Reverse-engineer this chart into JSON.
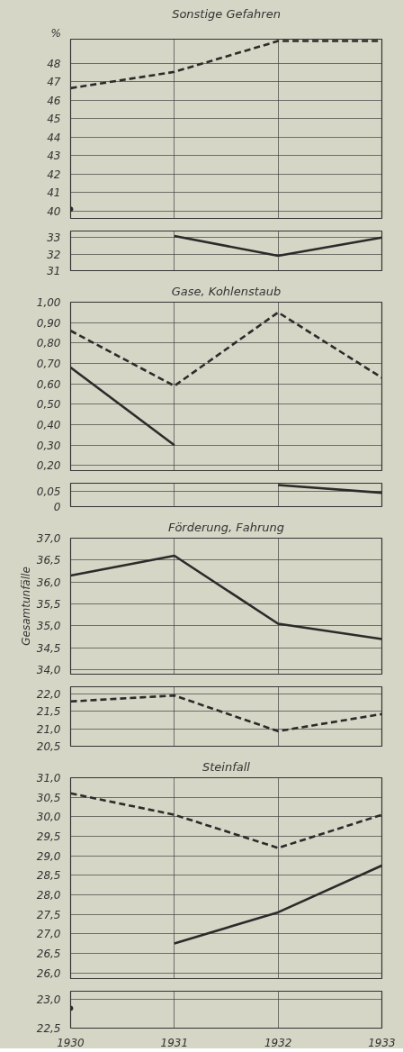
{
  "chart_data": [
    {
      "type": "line",
      "title": "Sonstige Gefahren",
      "annotations": [
        "%"
      ],
      "xlim": [
        1930,
        1933
      ],
      "xticks": [
        1930,
        1931,
        1932,
        1933
      ],
      "ylim": [
        39.6,
        49.3
      ],
      "yticks": [
        40,
        41,
        42,
        43,
        44,
        45,
        46,
        47,
        48
      ],
      "grid": true,
      "tick_labels": "y",
      "series": [
        {
          "color": "#2b2b2b",
          "line_style": "dashed",
          "x": [
            1930,
            1931,
            1932,
            1933
          ],
          "values": [
            46.65,
            47.53,
            49.2,
            49.2
          ]
        },
        {
          "color": "#2b2b2b",
          "line_style": "solid",
          "marker": "circle",
          "x": [
            1930
          ],
          "values": [
            40.1
          ]
        }
      ]
    },
    {
      "type": "line",
      "xlim": [
        1930,
        1933
      ],
      "xticks": [
        1930,
        1931,
        1932,
        1933
      ],
      "ylim": [
        31,
        33.4
      ],
      "yticks": [
        31,
        32,
        33
      ],
      "grid": true,
      "tick_labels": "y",
      "series": [
        {
          "color": "#2b2b2b",
          "line_style": "solid",
          "x": [
            1931,
            1932,
            1933
          ],
          "values": [
            33.1,
            31.9,
            33.0
          ]
        }
      ]
    },
    {
      "type": "line",
      "title": "Gase, Kohlenstaub",
      "xlim": [
        1930,
        1933
      ],
      "xticks": [
        1930,
        1931,
        1932,
        1933
      ],
      "ylim": [
        0.175,
        1.0
      ],
      "yticks": [
        {
          "value": 0.2,
          "label": "0,20"
        },
        {
          "value": 0.3,
          "label": "0,30"
        },
        {
          "value": 0.4,
          "label": "0,40"
        },
        {
          "value": 0.5,
          "label": "0,50"
        },
        {
          "value": 0.6,
          "label": "0,60"
        },
        {
          "value": 0.7,
          "label": "0,70"
        },
        {
          "value": 0.8,
          "label": "0,80"
        },
        {
          "value": 0.9,
          "label": "0,90"
        },
        {
          "value": 1.0,
          "label": "1,00"
        }
      ],
      "grid": true,
      "tick_labels": "y",
      "series": [
        {
          "color": "#2b2b2b",
          "line_style": "dashed",
          "x": [
            1930,
            1931,
            1932,
            1933
          ],
          "values": [
            0.86,
            0.59,
            0.95,
            0.63
          ]
        },
        {
          "color": "#2b2b2b",
          "line_style": "solid",
          "x": [
            1930,
            1931
          ],
          "values": [
            0.68,
            0.3
          ]
        }
      ]
    },
    {
      "type": "line",
      "xlim": [
        1930,
        1933
      ],
      "xticks": [
        1930,
        1931,
        1932,
        1933
      ],
      "ylim": [
        0,
        0.076
      ],
      "yticks": [
        0,
        {
          "value": 0.05,
          "label": "0,05"
        }
      ],
      "grid": true,
      "tick_labels": "y",
      "series": [
        {
          "color": "#2b2b2b",
          "line_style": "solid",
          "x": [
            1932,
            1933
          ],
          "values": [
            0.07,
            0.045
          ]
        }
      ]
    },
    {
      "type": "line",
      "title": "Förderung, Fahrung",
      "ylabel": "Gesamtunfälle",
      "xlim": [
        1930,
        1933
      ],
      "xticks": [
        1930,
        1931,
        1932,
        1933
      ],
      "ylim": [
        33.9,
        37.0
      ],
      "yticks": [
        {
          "value": 34.0,
          "label": "34,0"
        },
        {
          "value": 34.5,
          "label": "34,5"
        },
        {
          "value": 35.0,
          "label": "35,0"
        },
        {
          "value": 35.5,
          "label": "35,5"
        },
        {
          "value": 36.0,
          "label": "36,0"
        },
        {
          "value": 36.5,
          "label": "36,5"
        },
        {
          "value": 37.0,
          "label": "37,0"
        }
      ],
      "grid": true,
      "tick_labels": "y",
      "series": [
        {
          "color": "#2b2b2b",
          "line_style": "solid",
          "x": [
            1930,
            1931,
            1932,
            1933
          ],
          "values": [
            36.15,
            36.6,
            35.05,
            34.7
          ]
        }
      ]
    },
    {
      "type": "line",
      "xlim": [
        1930,
        1933
      ],
      "xticks": [
        1930,
        1931,
        1932,
        1933
      ],
      "ylim": [
        20.5,
        22.2
      ],
      "yticks": [
        {
          "value": 20.5,
          "label": "20,5"
        },
        {
          "value": 21.0,
          "label": "21,0"
        },
        {
          "value": 21.5,
          "label": "21,5"
        },
        {
          "value": 22.0,
          "label": "22,0"
        }
      ],
      "grid": true,
      "tick_labels": "y",
      "series": [
        {
          "color": "#2b2b2b",
          "line_style": "dashed",
          "x": [
            1930,
            1931,
            1932,
            1933
          ],
          "values": [
            21.78,
            21.95,
            20.93,
            21.42
          ]
        }
      ]
    },
    {
      "type": "line",
      "title": "Steinfall",
      "xlim": [
        1930,
        1933
      ],
      "xticks": [
        1930,
        1931,
        1932,
        1933
      ],
      "ylim": [
        25.85,
        31.0
      ],
      "yticks": [
        {
          "value": 26.0,
          "label": "26,0"
        },
        {
          "value": 26.5,
          "label": "26,5"
        },
        {
          "value": 27.0,
          "label": "27,0"
        },
        {
          "value": 27.5,
          "label": "27,5"
        },
        {
          "value": 28.0,
          "label": "28,0"
        },
        {
          "value": 28.5,
          "label": "28,5"
        },
        {
          "value": 29.0,
          "label": "29,0"
        },
        {
          "value": 29.5,
          "label": "29,5"
        },
        {
          "value": 30.0,
          "label": "30,0"
        },
        {
          "value": 30.5,
          "label": "30,5"
        },
        {
          "value": 31.0,
          "label": "31,0"
        }
      ],
      "grid": true,
      "tick_labels": "y",
      "series": [
        {
          "color": "#2b2b2b",
          "line_style": "dashed",
          "x": [
            1930,
            1931,
            1932,
            1933
          ],
          "values": [
            30.6,
            30.05,
            29.2,
            30.05
          ]
        },
        {
          "color": "#2b2b2b",
          "line_style": "solid",
          "x": [
            1931,
            1932,
            1933
          ],
          "values": [
            26.75,
            27.55,
            28.75
          ]
        }
      ]
    },
    {
      "type": "line",
      "xlim": [
        1930,
        1933
      ],
      "xticks": [
        1930,
        1931,
        1932,
        1933
      ],
      "ylim": [
        22.5,
        23.15
      ],
      "yticks": [
        {
          "value": 22.5,
          "label": "22,5"
        },
        {
          "value": 23.0,
          "label": "23,0"
        }
      ],
      "grid": true,
      "series": [
        {
          "color": "#2b2b2b",
          "line_style": "solid",
          "marker": "circle",
          "x": [
            1930
          ],
          "values": [
            22.85
          ]
        }
      ]
    }
  ]
}
